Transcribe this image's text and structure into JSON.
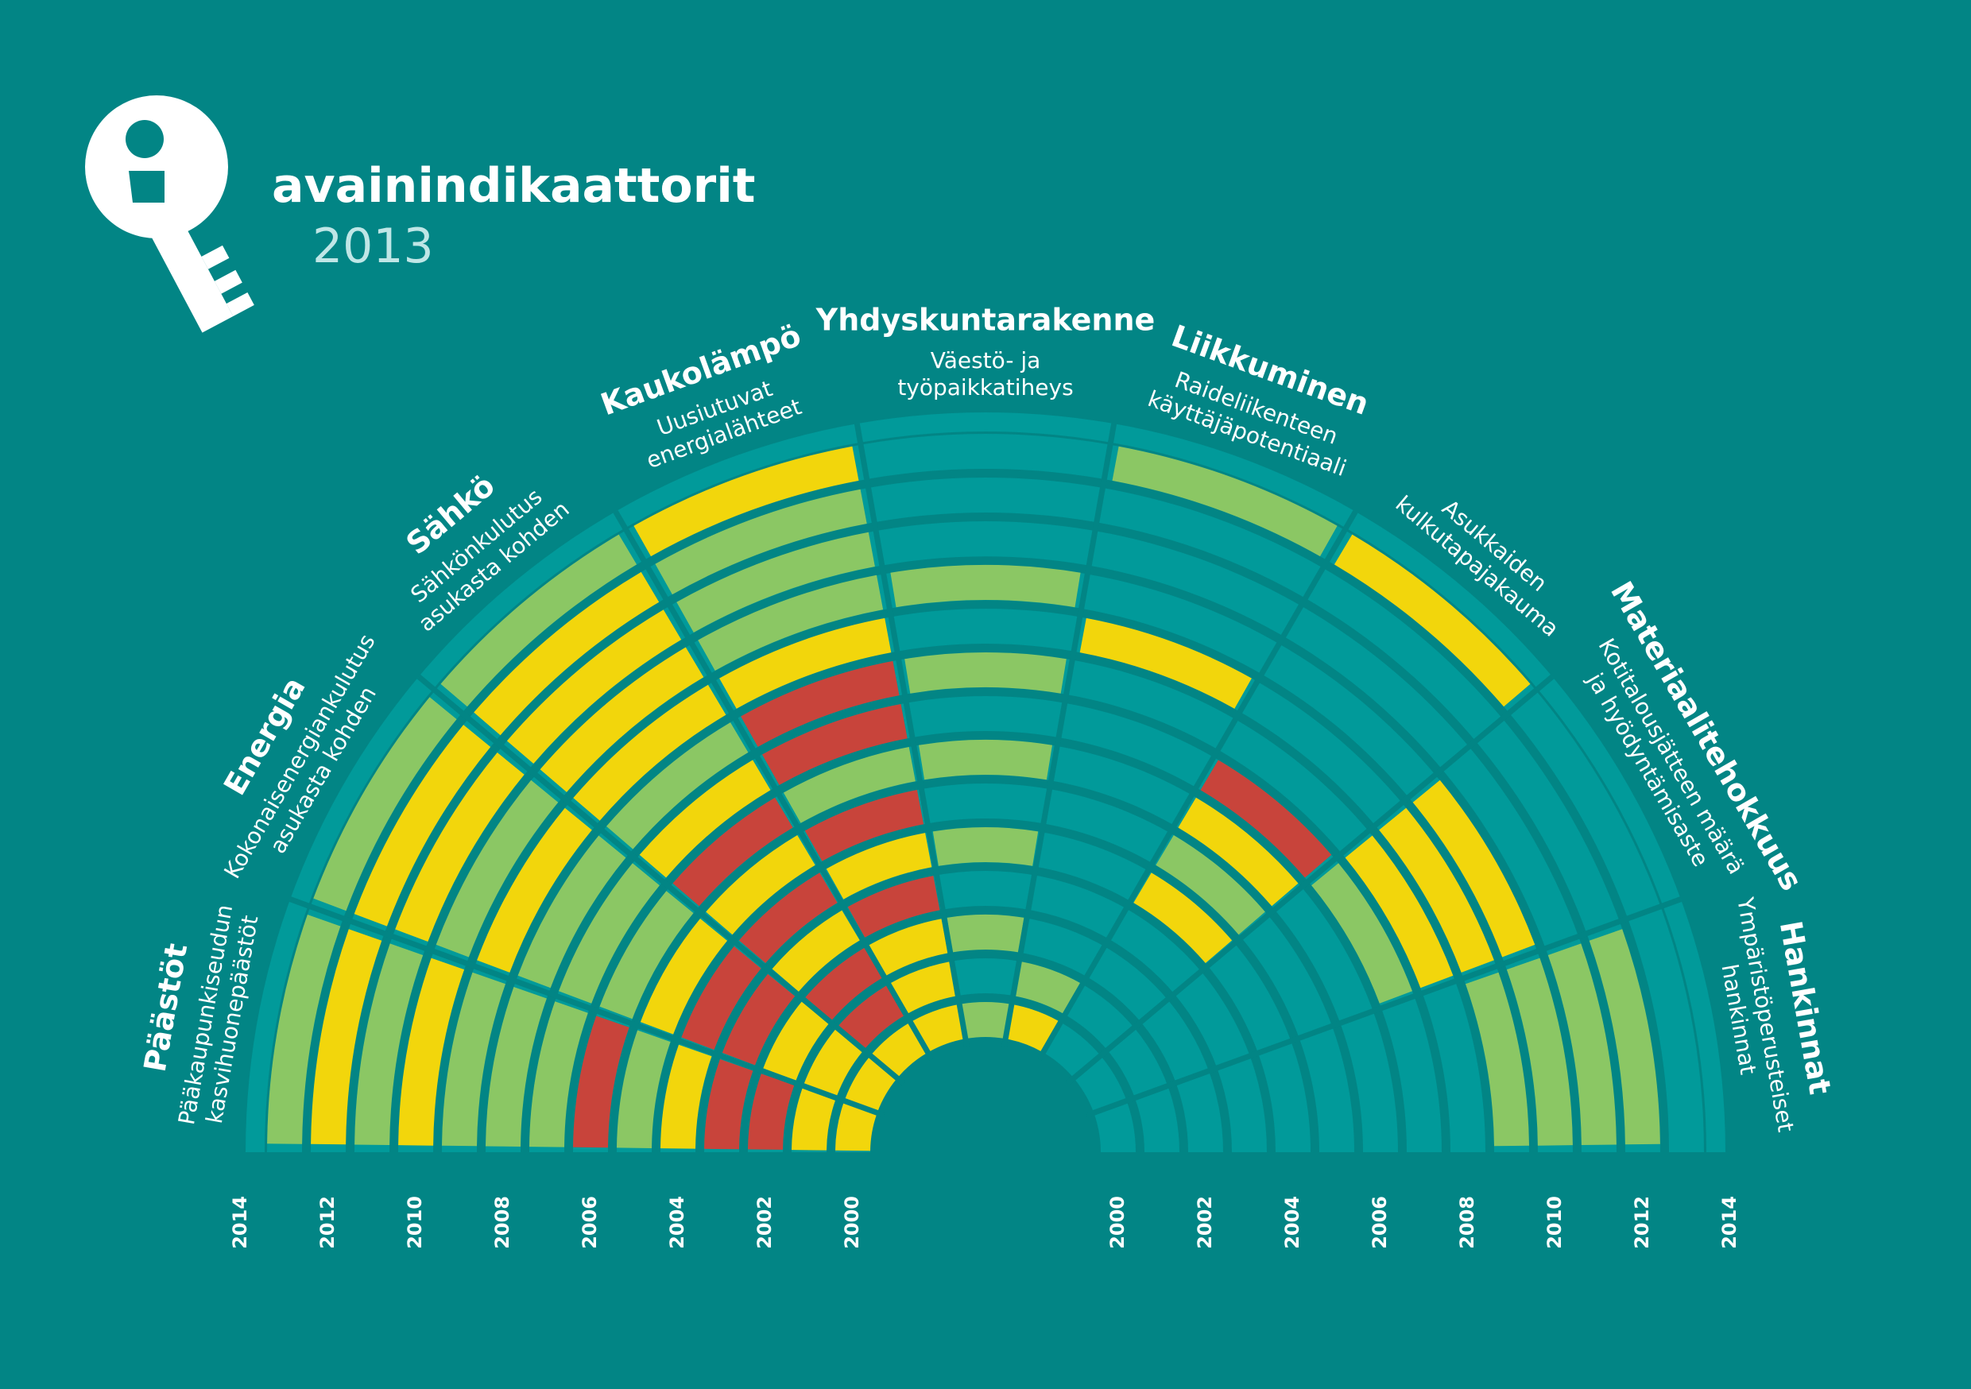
{
  "header": {
    "title": "avainindikaattorit",
    "year": "2013",
    "logo_icon": "key-icon"
  },
  "colors": {
    "background": "#028585",
    "track": "#019a9a",
    "green": "#8bc764",
    "yellow": "#f2d60c",
    "red": "#c8443b"
  },
  "chart_data": {
    "type": "semicircular-timeline",
    "years_left": [
      "2000",
      "2002",
      "2004",
      "2006",
      "2008",
      "2010",
      "2012",
      "2014"
    ],
    "years_right": [
      "2000",
      "2002",
      "2004",
      "2006",
      "2008",
      "2010",
      "2012",
      "2014"
    ],
    "categories": [
      {
        "name": "Päästöt",
        "subtitle_lines": [
          "Pääkaupunkiseudun",
          "kasvihuonepäästöt"
        ],
        "values": [
          "yellow",
          "yellow",
          "red",
          "red",
          "yellow",
          "green",
          "red",
          "green",
          "green",
          "green",
          "yellow",
          "green",
          "yellow",
          "green"
        ]
      },
      {
        "name": "Energia",
        "subtitle_lines": [
          "Kokonaisenergiankulutus",
          "asukasta kohden"
        ],
        "values": [
          "yellow",
          "yellow",
          "yellow",
          "red",
          "red",
          "yellow",
          "green",
          "green",
          "green",
          "yellow",
          "green",
          "yellow",
          "yellow",
          "green"
        ]
      },
      {
        "name": "Sähkö",
        "subtitle_lines": [
          "Sähkönkulutus",
          "asukasta kohden"
        ],
        "values": [
          "yellow",
          "red",
          "red",
          "yellow",
          "red",
          "yellow",
          "red",
          "yellow",
          "green",
          "yellow",
          "yellow",
          "yellow",
          "yellow",
          "green"
        ]
      },
      {
        "name": "Kaukolämpö",
        "subtitle_lines": [
          "Uusiutuvat",
          "energialähteet"
        ],
        "values": [
          "yellow",
          "yellow",
          "yellow",
          "red",
          "yellow",
          "red",
          "green",
          "red",
          "red",
          "yellow",
          "green",
          "green",
          "green",
          "yellow"
        ]
      },
      {
        "name": "Yhdyskuntarakenne",
        "subtitle_lines": [
          "Väestö- ja",
          "työpaikkatiheys"
        ],
        "values": [
          "green",
          "",
          "green",
          "",
          "green",
          "",
          "green",
          "",
          "green",
          "",
          "green",
          "",
          "",
          ""
        ]
      },
      {
        "name": "Liikkuminen",
        "subtitle_lines": [
          "Raideliikenteen",
          "käyttäjäpotentiaali"
        ],
        "values": [
          "yellow",
          "green",
          "",
          "",
          "",
          "",
          "",
          "",
          "",
          "yellow",
          "",
          "",
          "",
          "green"
        ]
      },
      {
        "name": "",
        "subtitle_lines": [
          "Asukkaiden",
          "kulkutapajakauma"
        ],
        "values": [
          "",
          "",
          "",
          "",
          "yellow",
          "green",
          "yellow",
          "red",
          "",
          "",
          "",
          "",
          "",
          "yellow"
        ]
      },
      {
        "name": "Materiaalitehokkuus",
        "subtitle_lines": [
          "Kotitalousjätteen määrä",
          "ja hyödyntämisaste"
        ],
        "values": [
          "",
          "",
          "",
          "",
          "",
          "",
          "",
          "green",
          "yellow",
          "yellow",
          "yellow",
          "",
          "",
          ""
        ]
      },
      {
        "name": "Hankinnat",
        "subtitle_lines": [
          "Ympäristöperusteiset",
          "hankinnat"
        ],
        "values": [
          "",
          "",
          "",
          "",
          "",
          "",
          "",
          "",
          "",
          "green",
          "green",
          "green",
          "green",
          ""
        ]
      }
    ]
  }
}
